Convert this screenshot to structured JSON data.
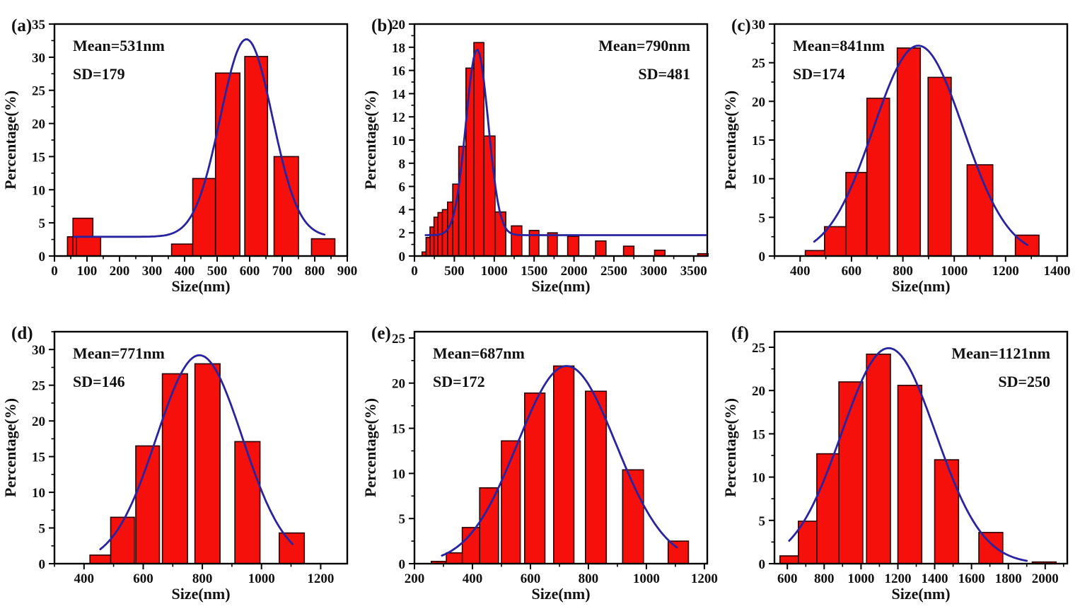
{
  "title": "",
  "colors": {
    "background": "#ffffff",
    "bar_fill": "#f5100c",
    "bar_edge": "#2a0000",
    "curve": "#2823a0",
    "axis": "#000000",
    "text": "#111111"
  },
  "bars_format": "[x0_nm, x1_nm, height_percent]",
  "chart_data": [
    {
      "type": "bar",
      "panel_label": "(a)",
      "annotations": [
        "Mean=531nm",
        "SD=179"
      ],
      "annotation_side": "left",
      "xlabel": "Size(nm)",
      "ylabel": "Percentage(%)",
      "xlim": [
        0,
        900
      ],
      "ylim": [
        0,
        35
      ],
      "xticks": [
        0,
        100,
        200,
        300,
        400,
        500,
        600,
        700,
        800,
        900
      ],
      "yticks": [
        0,
        5,
        10,
        15,
        20,
        25,
        30,
        35
      ],
      "x_minor_step": 50,
      "y_minor_step": 2.5,
      "grid": "off",
      "legend": "none",
      "bars": [
        [
          40,
          67,
          2.9
        ],
        [
          57,
          118,
          5.7
        ],
        [
          67,
          142,
          2.9
        ],
        [
          360,
          425,
          1.8
        ],
        [
          425,
          495,
          11.7
        ],
        [
          495,
          570,
          27.6
        ],
        [
          585,
          655,
          30.1
        ],
        [
          675,
          750,
          15.0
        ],
        [
          790,
          862,
          2.6
        ]
      ],
      "fit_curve": {
        "mean": 590,
        "sd": 80,
        "peak": 32.7,
        "base": 2.9,
        "range": [
          60,
          830
        ]
      }
    },
    {
      "type": "bar",
      "panel_label": "(b)",
      "annotations": [
        "Mean=790nm",
        "SD=481"
      ],
      "annotation_side": "right",
      "xlabel": "Size(nm)",
      "ylabel": "Percentage(%)",
      "xlim": [
        0,
        3670
      ],
      "ylim": [
        0,
        20
      ],
      "xticks": [
        0,
        500,
        1000,
        1500,
        2000,
        2500,
        3000,
        3500
      ],
      "yticks": [
        0,
        2,
        4,
        6,
        8,
        10,
        12,
        14,
        16,
        18,
        20
      ],
      "x_minor_step": 250,
      "y_minor_step": 1,
      "grid": "off",
      "legend": "none",
      "bars": [
        [
          95,
          145,
          0.35
        ],
        [
          145,
          195,
          1.6
        ],
        [
          195,
          245,
          2.5
        ],
        [
          245,
          295,
          3.35
        ],
        [
          295,
          350,
          3.75
        ],
        [
          350,
          415,
          4.0
        ],
        [
          415,
          480,
          4.65
        ],
        [
          480,
          555,
          6.2
        ],
        [
          555,
          645,
          9.45
        ],
        [
          645,
          745,
          16.2
        ],
        [
          745,
          870,
          18.4
        ],
        [
          870,
          1010,
          10.35
        ],
        [
          1010,
          1145,
          3.8
        ],
        [
          1215,
          1345,
          2.6
        ],
        [
          1440,
          1560,
          2.2
        ],
        [
          1670,
          1790,
          2.0
        ],
        [
          1920,
          2060,
          1.7
        ],
        [
          2270,
          2400,
          1.3
        ],
        [
          2620,
          2750,
          0.85
        ],
        [
          3010,
          3140,
          0.5
        ],
        [
          3550,
          3680,
          0.2
        ]
      ],
      "fit_curve": {
        "mean": 785,
        "sd": 140,
        "peak": 17.8,
        "base": 1.8,
        "range": [
          140,
          3650
        ]
      }
    },
    {
      "type": "bar",
      "panel_label": "(c)",
      "annotations": [
        "Mean=841nm",
        "SD=174"
      ],
      "annotation_side": "left",
      "xlabel": "Size(nm)",
      "ylabel": "Percentage(%)",
      "xlim": [
        300,
        1440
      ],
      "ylim": [
        0,
        30
      ],
      "xticks": [
        400,
        600,
        800,
        1000,
        1200,
        1400
      ],
      "yticks": [
        0,
        5,
        10,
        15,
        20,
        25,
        30
      ],
      "x_minor_step": 100,
      "y_minor_step": 2.5,
      "grid": "off",
      "legend": "none",
      "bars": [
        [
          420,
          500,
          0.7
        ],
        [
          495,
          578,
          3.8
        ],
        [
          578,
          658,
          10.8
        ],
        [
          660,
          748,
          20.4
        ],
        [
          778,
          868,
          26.9
        ],
        [
          898,
          988,
          23.1
        ],
        [
          1050,
          1150,
          11.8
        ],
        [
          1238,
          1330,
          2.7
        ]
      ],
      "fit_curve": {
        "mean": 860,
        "sd": 175,
        "peak": 27.2,
        "base": 0,
        "range": [
          455,
          1285
        ]
      }
    },
    {
      "type": "bar",
      "panel_label": "(d)",
      "annotations": [
        "Mean=771nm",
        "SD=146"
      ],
      "annotation_side": "left",
      "xlabel": "Size(nm)",
      "ylabel": "Percentage(%)",
      "xlim": [
        300,
        1290
      ],
      "ylim": [
        0,
        32.5
      ],
      "xticks": [
        400,
        600,
        800,
        1000,
        1200
      ],
      "yticks": [
        0,
        5,
        10,
        15,
        20,
        25,
        30
      ],
      "x_minor_step": 100,
      "y_minor_step": 2.5,
      "grid": "off",
      "legend": "none",
      "bars": [
        [
          420,
          490,
          1.2
        ],
        [
          490,
          570,
          6.5
        ],
        [
          575,
          655,
          16.5
        ],
        [
          665,
          750,
          26.6
        ],
        [
          775,
          860,
          28.0
        ],
        [
          910,
          995,
          17.1
        ],
        [
          1060,
          1145,
          4.3
        ]
      ],
      "fit_curve": {
        "mean": 790,
        "sd": 145,
        "peak": 29.2,
        "base": 0,
        "range": [
          455,
          1105
        ]
      }
    },
    {
      "type": "bar",
      "panel_label": "(e)",
      "annotations": [
        "Mean=687nm",
        "SD=172"
      ],
      "annotation_side": "left",
      "xlabel": "Size(nm)",
      "ylabel": "Percentage(%)",
      "xlim": [
        200,
        1210
      ],
      "ylim": [
        0,
        25.7
      ],
      "xticks": [
        200,
        400,
        600,
        800,
        1000,
        1200
      ],
      "yticks": [
        0,
        5,
        10,
        15,
        20,
        25
      ],
      "x_minor_step": 100,
      "y_minor_step": 2.5,
      "grid": "off",
      "legend": "none",
      "bars": [
        [
          258,
          312,
          0.25
        ],
        [
          310,
          375,
          1.2
        ],
        [
          365,
          430,
          4.0
        ],
        [
          425,
          490,
          8.4
        ],
        [
          500,
          565,
          13.6
        ],
        [
          580,
          650,
          18.9
        ],
        [
          680,
          750,
          21.9
        ],
        [
          790,
          862,
          19.1
        ],
        [
          918,
          990,
          10.4
        ],
        [
          1075,
          1145,
          2.5
        ]
      ],
      "fit_curve": {
        "mean": 725,
        "sd": 170,
        "peak": 21.9,
        "base": 0,
        "range": [
          295,
          1105
        ]
      }
    },
    {
      "type": "bar",
      "panel_label": "(f)",
      "annotations": [
        "Mean=1121nm",
        "SD=250"
      ],
      "annotation_side": "right",
      "xlabel": "Size(nm)",
      "ylabel": "Percentage(%)",
      "xlim": [
        530,
        2120
      ],
      "ylim": [
        0,
        26.8
      ],
      "xticks": [
        600,
        800,
        1000,
        1200,
        1400,
        1600,
        1800,
        2000
      ],
      "yticks": [
        0,
        5,
        10,
        15,
        20,
        25
      ],
      "x_minor_step": 100,
      "y_minor_step": 2.5,
      "grid": "off",
      "legend": "none",
      "bars": [
        [
          560,
          680,
          0.9
        ],
        [
          660,
          790,
          4.9
        ],
        [
          760,
          890,
          12.7
        ],
        [
          880,
          1010,
          21.0
        ],
        [
          1030,
          1160,
          24.2
        ],
        [
          1200,
          1330,
          20.6
        ],
        [
          1400,
          1530,
          12.0
        ],
        [
          1640,
          1770,
          3.6
        ],
        [
          1930,
          2060,
          0.2
        ]
      ],
      "fit_curve": {
        "mean": 1150,
        "sd": 255,
        "peak": 24.9,
        "base": 0,
        "range": [
          610,
          1900
        ]
      }
    }
  ]
}
